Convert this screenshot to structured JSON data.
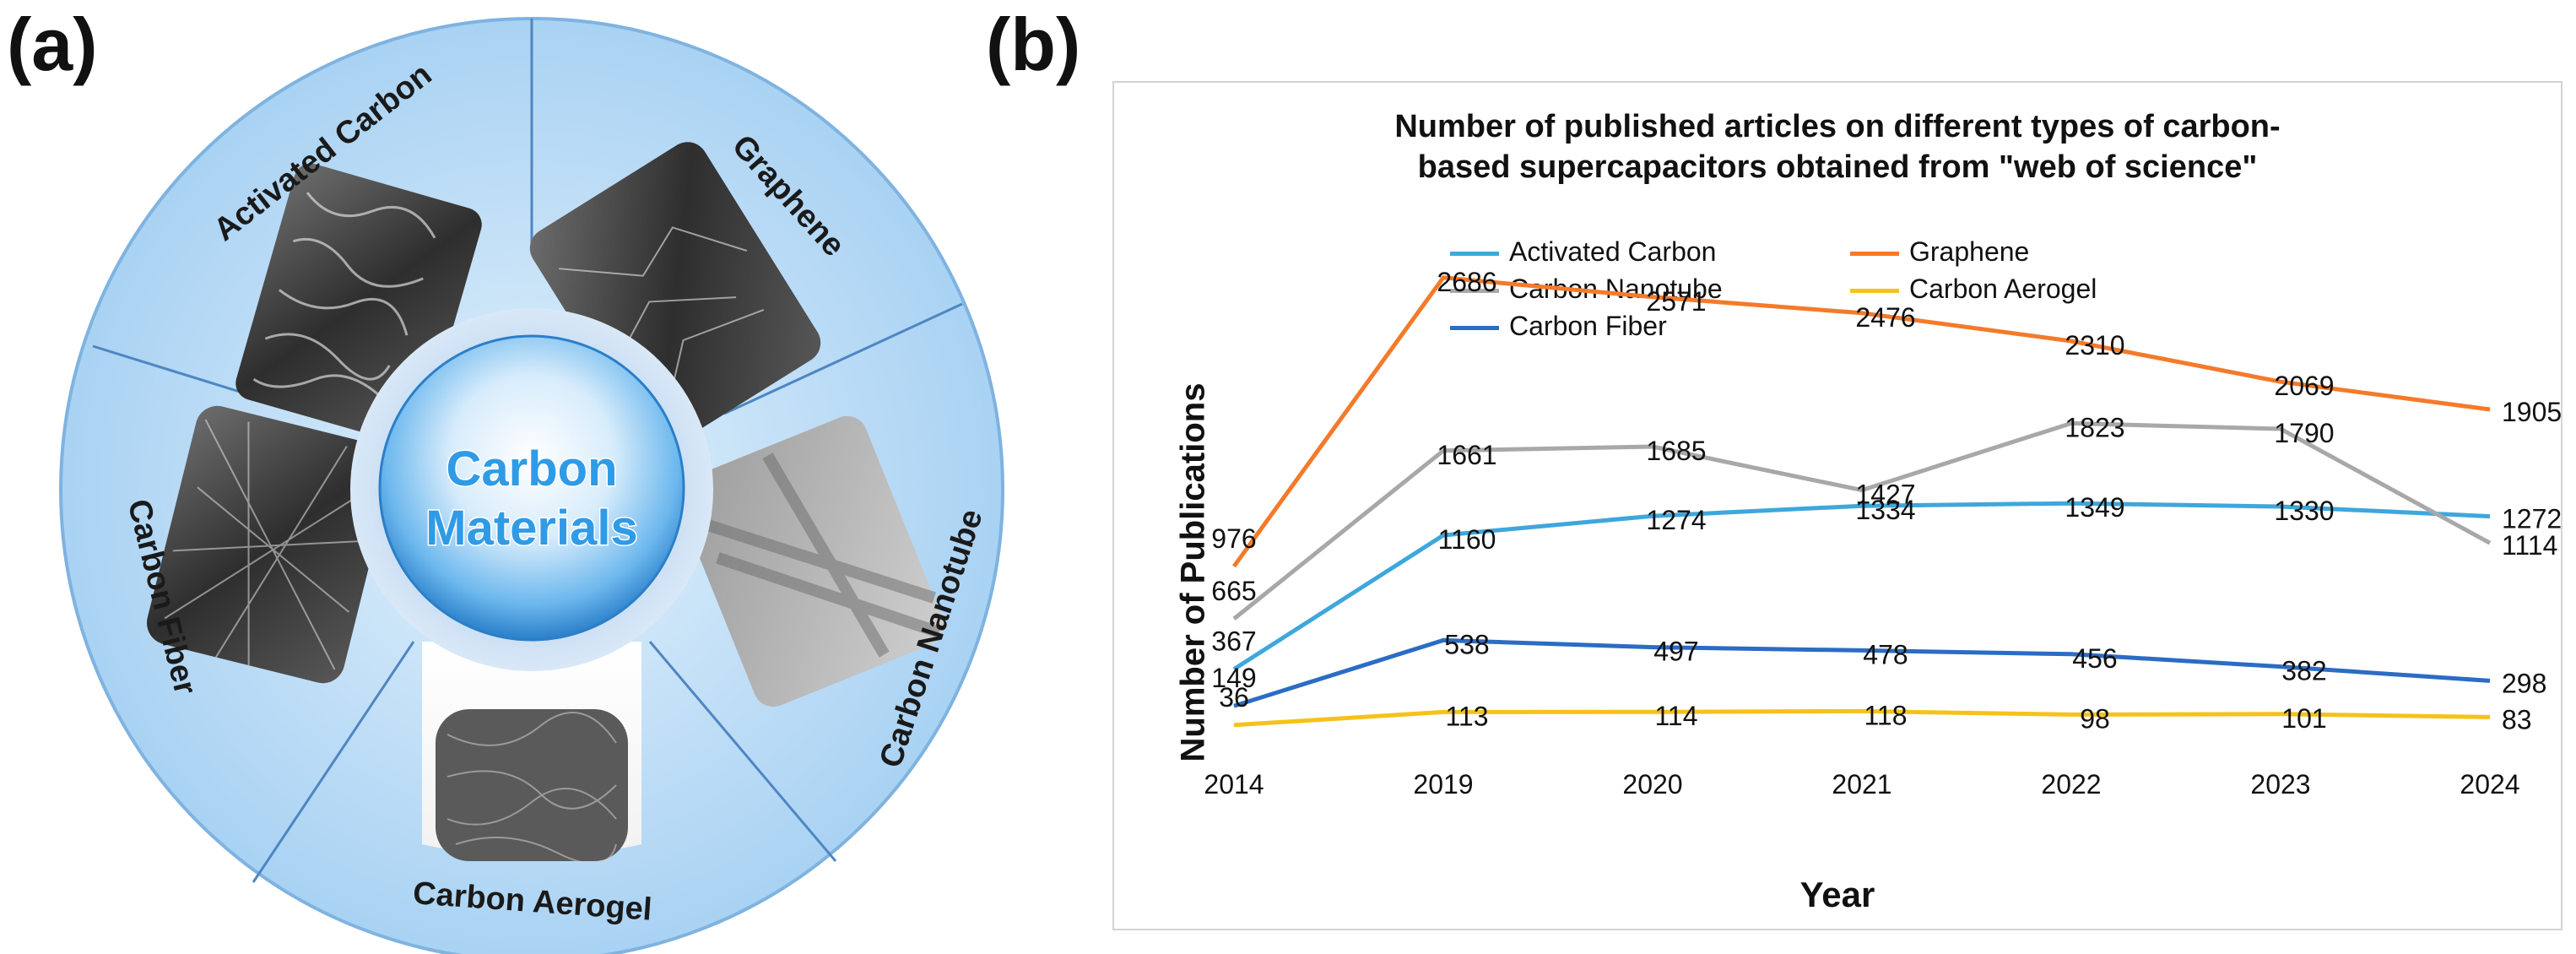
{
  "panel_a": {
    "label": "(a)",
    "center_line1": "Carbon",
    "center_line2": "Materials",
    "segments": [
      "Activated Carbon",
      "Graphene",
      "Carbon Nanotube",
      "Carbon Aerogel",
      "Carbon Fiber"
    ],
    "colors": {
      "ring": "#a9d2f3",
      "ring_dark": "#4e86c2",
      "core": "#2f9be6",
      "text": "#1a1a1a"
    }
  },
  "panel_b": {
    "label": "(b)"
  },
  "chart_data": {
    "type": "line",
    "title_line1": "Number of published articles on different types of carbon-",
    "title_line2": "based supercapacitors obtained from \"web of science\"",
    "xlabel": "Year",
    "ylabel": "Number of Publications",
    "categories": [
      "2014",
      "2019",
      "2020",
      "2021",
      "2022",
      "2023",
      "2024"
    ],
    "ylim": [
      0,
      3000
    ],
    "grid": false,
    "legend_position": "top",
    "series": [
      {
        "name": "Activated Carbon",
        "color": "#3ea7dc",
        "values": [
          367,
          1160,
          1274,
          1334,
          1349,
          1330,
          1272
        ]
      },
      {
        "name": "Graphene",
        "color": "#f47a2a",
        "values": [
          976,
          2686,
          2571,
          2476,
          2310,
          2069,
          1905
        ]
      },
      {
        "name": "Carbon Nanotube",
        "color": "#a8a8a8",
        "values": [
          665,
          1661,
          1685,
          1427,
          1823,
          1790,
          1114
        ]
      },
      {
        "name": "Carbon Aerogel",
        "color": "#f5c21b",
        "values": [
          36,
          113,
          114,
          118,
          98,
          101,
          83
        ]
      },
      {
        "name": "Carbon Fiber",
        "color": "#2b6cc4",
        "values": [
          149,
          538,
          497,
          478,
          456,
          382,
          298
        ]
      }
    ]
  }
}
